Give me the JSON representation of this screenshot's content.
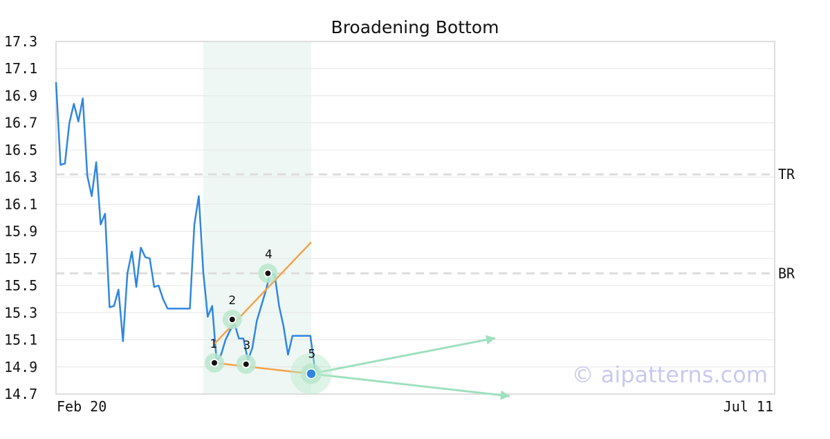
{
  "chart_data": {
    "type": "line",
    "title": "Broadening Bottom",
    "ylim": [
      14.7,
      17.3
    ],
    "y_ticks": [
      "17.3",
      "17.1",
      "16.9",
      "16.7",
      "16.5",
      "16.3",
      "16.1",
      "15.9",
      "15.7",
      "15.5",
      "15.3",
      "15.1",
      "14.9",
      "14.7"
    ],
    "x_ticks": [
      "Feb 20",
      "Jul 11"
    ],
    "grid": true,
    "series": [
      {
        "color": "#2f86e0",
        "values": [
          17.0,
          16.39,
          16.4,
          16.7,
          16.84,
          16.71,
          16.88,
          16.31,
          16.16,
          16.41,
          15.95,
          16.03,
          15.34,
          15.35,
          15.47,
          15.09,
          15.59,
          15.75,
          15.49,
          15.78,
          15.71,
          15.7,
          15.49,
          15.5,
          15.4,
          15.33,
          15.33,
          15.33,
          15.33,
          15.33,
          15.33,
          15.95,
          16.16,
          15.6,
          15.27,
          15.35,
          14.94,
          14.99,
          15.1,
          15.17,
          15.22,
          15.11,
          15.11,
          14.95,
          15.04,
          15.24,
          15.35,
          15.46,
          15.59,
          15.58,
          15.35,
          15.2,
          14.99,
          15.13,
          15.13,
          15.13,
          15.13,
          15.13,
          14.89,
          14.85
        ]
      }
    ],
    "levels": [
      {
        "label": "TR",
        "value": 16.32
      },
      {
        "label": "BR",
        "value": 15.59
      }
    ],
    "pattern_zone": {
      "start_index": 33,
      "end_index": 57.2
    },
    "pattern_points": [
      {
        "label": "1",
        "index": 35.5,
        "value": 14.93
      },
      {
        "label": "2",
        "index": 39.5,
        "value": 15.25
      },
      {
        "label": "3",
        "index": 42.6,
        "value": 14.92
      },
      {
        "label": "4",
        "index": 47.5,
        "value": 15.59
      },
      {
        "label": "5",
        "index": 57.2,
        "value": 14.85
      }
    ],
    "trendlines": [
      {
        "color": "#f4a24a",
        "from": {
          "index": 35.5,
          "value": 15.07
        },
        "to": {
          "index": 57.2,
          "value": 15.82
        }
      },
      {
        "color": "#f4a24a",
        "from": {
          "index": 35.5,
          "value": 14.93
        },
        "to": {
          "index": 57.2,
          "value": 14.85
        }
      }
    ],
    "colors": {
      "zone": "#eef7f3",
      "marker_halo": "#b8e6cc",
      "arrow": "#9ee0bf",
      "final_marker": "#2f86e0",
      "grid": "#e6e6e6",
      "level_line": "#dddddd",
      "axis_frame": "#dddddd"
    }
  },
  "watermark": "© aipatterns.com"
}
